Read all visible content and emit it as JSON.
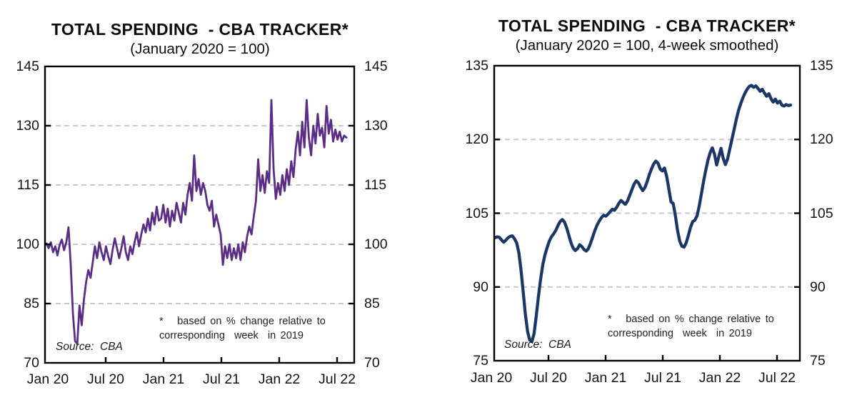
{
  "chart_data": [
    {
      "type": "line",
      "title": "TOTAL SPENDING  - CBA TRACKER*",
      "subtitle": "(January 2020 = 100)",
      "source": "Source:  CBA",
      "footnote": "*   based on % change relative to\ncorresponding  week  in 2019",
      "x_labels": [
        "Jan 20",
        "Jul 20",
        "Jan 21",
        "Jul 21",
        "Jan 22",
        "Jul 22"
      ],
      "x_range": "Jan 2020 to Aug 2022, weekly",
      "y_ticks": [
        70,
        85,
        100,
        115,
        130,
        145
      ],
      "ylim": [
        70,
        145
      ],
      "grid": "dashed horizontal at interior ticks",
      "legend": "none",
      "line_color": "#5b2d87",
      "values": [
        100.2,
        99.0,
        100.5,
        98.0,
        99.5,
        97.2,
        99.8,
        101.2,
        98.5,
        100.5,
        104.3,
        95.0,
        82.5,
        75.5,
        74.8,
        84.5,
        79.5,
        86.0,
        90.5,
        93.5,
        91.5,
        95.5,
        99.5,
        96.5,
        100.5,
        98.0,
        96.0,
        99.5,
        97.0,
        95.0,
        98.5,
        101.5,
        99.0,
        96.5,
        99.0,
        102.0,
        98.0,
        96.0,
        99.5,
        97.5,
        100.5,
        103.0,
        99.5,
        102.5,
        105.0,
        103.0,
        106.5,
        103.5,
        108.0,
        105.0,
        109.5,
        106.0,
        106.5,
        110.0,
        105.5,
        109.0,
        104.5,
        108.5,
        106.0,
        110.5,
        108.0,
        105.5,
        110.5,
        107.5,
        112.5,
        115.5,
        111.0,
        122.5,
        113.5,
        116.5,
        112.5,
        115.5,
        113.5,
        110.0,
        108.5,
        111.0,
        104.5,
        107.5,
        105.0,
        102.5,
        94.8,
        99.5,
        96.5,
        100.0,
        96.0,
        99.0,
        96.5,
        100.0,
        96.0,
        100.5,
        98.0,
        102.0,
        104.5,
        102.5,
        107.0,
        111.0,
        121.5,
        113.5,
        117.5,
        113.0,
        118.5,
        115.5,
        136.5,
        119.0,
        111.5,
        115.5,
        112.5,
        117.5,
        113.5,
        119.0,
        115.0,
        121.0,
        117.0,
        124.0,
        128.5,
        122.5,
        131.0,
        124.5,
        136.5,
        127.0,
        122.5,
        130.0,
        125.5,
        133.0,
        127.5,
        129.5,
        124.5,
        135.0,
        128.0,
        131.5,
        126.0,
        129.0,
        126.5,
        128.5,
        126.0,
        127.5,
        127.0
      ]
    },
    {
      "type": "line",
      "title": "TOTAL SPENDING  - CBA TRACKER*",
      "subtitle": "(January 2020 = 100, 4-week smoothed)",
      "source": "Source:  CBA",
      "footnote": "*   based on % change relative to\ncorresponding  week  in 2019",
      "x_labels": [
        "Jan 20",
        "Jul 20",
        "Jan 21",
        "Jul 21",
        "Jan 22",
        "Jul 22"
      ],
      "x_range": "Jan 2020 to Aug 2022, weekly 4-week smoothed",
      "y_ticks": [
        75,
        90,
        105,
        120,
        135
      ],
      "ylim": [
        75,
        135
      ],
      "grid": "dashed horizontal at interior ticks",
      "legend": "none",
      "line_color": "#1b3767",
      "values": [
        100.0,
        100.2,
        100.1,
        99.6,
        99.1,
        99.5,
        100.0,
        100.3,
        100.4,
        99.8,
        99.0,
        97.0,
        93.5,
        89.0,
        84.5,
        81.0,
        79.2,
        78.9,
        80.5,
        84.0,
        88.0,
        91.5,
        94.5,
        96.5,
        98.0,
        99.3,
        100.2,
        100.8,
        101.5,
        102.5,
        103.3,
        103.7,
        103.2,
        102.0,
        100.5,
        99.0,
        97.9,
        97.4,
        97.8,
        98.6,
        98.2,
        97.6,
        97.3,
        97.8,
        98.9,
        100.2,
        101.5,
        102.6,
        103.4,
        104.1,
        104.6,
        104.4,
        104.8,
        105.3,
        105.8,
        105.6,
        106.2,
        107.0,
        107.6,
        107.2,
        106.8,
        107.5,
        108.6,
        109.8,
        110.9,
        111.6,
        111.2,
        110.3,
        109.6,
        110.2,
        111.4,
        112.8,
        114.0,
        115.0,
        115.6,
        115.2,
        114.0,
        113.6,
        114.2,
        112.5,
        110.0,
        107.3,
        107.0,
        104.5,
        101.5,
        99.3,
        98.3,
        98.1,
        99.0,
        100.5,
        102.2,
        103.3,
        103.6,
        104.5,
        106.5,
        109.0,
        111.5,
        113.8,
        115.8,
        117.3,
        118.3,
        117.0,
        114.8,
        116.5,
        118.2,
        116.2,
        114.9,
        116.0,
        118.0,
        120.0,
        122.0,
        124.0,
        125.8,
        127.2,
        128.4,
        129.4,
        130.2,
        130.8,
        131.0,
        130.6,
        130.9,
        130.4,
        129.8,
        130.2,
        129.4,
        128.8,
        129.3,
        128.3,
        127.6,
        128.2,
        127.4,
        127.8,
        127.0,
        126.8,
        127.1,
        126.9,
        127.0
      ]
    }
  ],
  "colors": {
    "grid": "#c8c8c8",
    "axis": "#000000",
    "text": "#141414"
  }
}
